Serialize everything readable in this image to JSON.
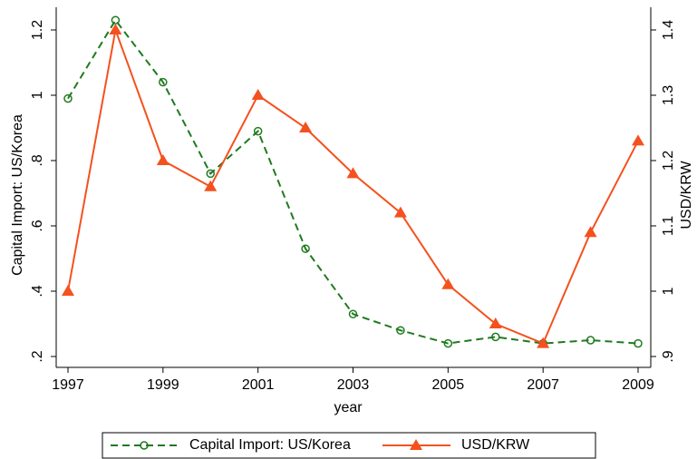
{
  "chart_data": {
    "type": "line",
    "x": [
      1997,
      1998,
      1999,
      2000,
      2001,
      2002,
      2003,
      2004,
      2005,
      2006,
      2007,
      2008,
      2009
    ],
    "xlabel": "year",
    "ylabel": "Capital Import: US/Korea",
    "y2label": "USD/KRW",
    "xlim": [
      1997,
      2009
    ],
    "xticks": [
      1997,
      1999,
      2001,
      2003,
      2005,
      2007,
      2009
    ],
    "ylim": [
      0.2,
      1.2
    ],
    "yticks": [
      {
        "value": 0.2,
        "label": ".2"
      },
      {
        "value": 0.4,
        "label": ".4"
      },
      {
        "value": 0.6,
        "label": ".6"
      },
      {
        "value": 0.8,
        "label": ".8"
      },
      1,
      1.2
    ],
    "y2lim": [
      0.9,
      1.4
    ],
    "y2ticks": [
      {
        "value": 0.9,
        "label": ".9"
      },
      1,
      1.1,
      1.2,
      1.3,
      1.4
    ],
    "legend": "bottom",
    "series": [
      {
        "name": "Capital Import: US/Korea",
        "color": "#1f7a1f",
        "dash": true,
        "marker": "circle",
        "values": [
          0.99,
          1.23,
          1.04,
          0.76,
          0.89,
          0.53,
          0.33,
          0.28,
          0.24,
          0.26,
          0.24,
          0.25,
          0.24
        ]
      },
      {
        "name": "USD/KRW",
        "color": "#f4511e",
        "axis": "y2",
        "dash": false,
        "marker": "triangle",
        "values": [
          1.0,
          1.4,
          1.2,
          1.16,
          1.3,
          1.25,
          1.18,
          1.12,
          1.01,
          0.95,
          0.92,
          1.09,
          1.23
        ]
      }
    ]
  }
}
